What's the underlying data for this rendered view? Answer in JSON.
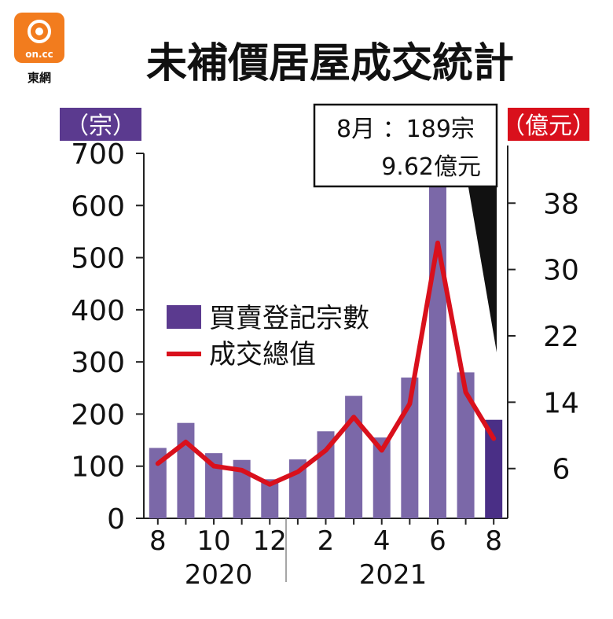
{
  "logo": {
    "mark": "on.cc",
    "caption": "東網"
  },
  "chart_data": {
    "type": "bar",
    "title": "未補價居屋成交統計",
    "left_unit": "（宗）",
    "right_unit": "（億元）",
    "x_tick_labels": [
      "8",
      "",
      "10",
      "",
      "12",
      "",
      "2",
      "",
      "4",
      "",
      "6",
      "",
      "8"
    ],
    "year_labels": [
      "2020",
      "2021"
    ],
    "y_left_ticks": [
      "0",
      "100",
      "200",
      "300",
      "400",
      "500",
      "600",
      "700"
    ],
    "y_right_ticks": [
      "6",
      "14",
      "22",
      "30",
      "38"
    ],
    "ylim_left": [
      0,
      700
    ],
    "ylim_right": [
      0,
      44
    ],
    "series": [
      {
        "name": "買賣登記宗數",
        "axis": "left",
        "kind": "bar",
        "values": [
          135,
          183,
          125,
          112,
          75,
          113,
          167,
          235,
          155,
          270,
          660,
          280,
          189
        ]
      },
      {
        "name": "成交總值",
        "axis": "right",
        "kind": "line",
        "values": [
          6.6,
          9.2,
          6.3,
          5.8,
          4.1,
          5.6,
          8.2,
          12.2,
          8.2,
          13.8,
          33.2,
          15.2,
          9.62
        ]
      }
    ],
    "annotation": {
      "line1": "8月 ：189宗",
      "line2": "9.62億元"
    },
    "colors": {
      "bar": "#7b68a8",
      "bar_highlight": "#4a2f86",
      "line": "#d9101c",
      "left_unit_bg": "#5b3a8f",
      "right_unit_bg": "#d9101c"
    }
  }
}
